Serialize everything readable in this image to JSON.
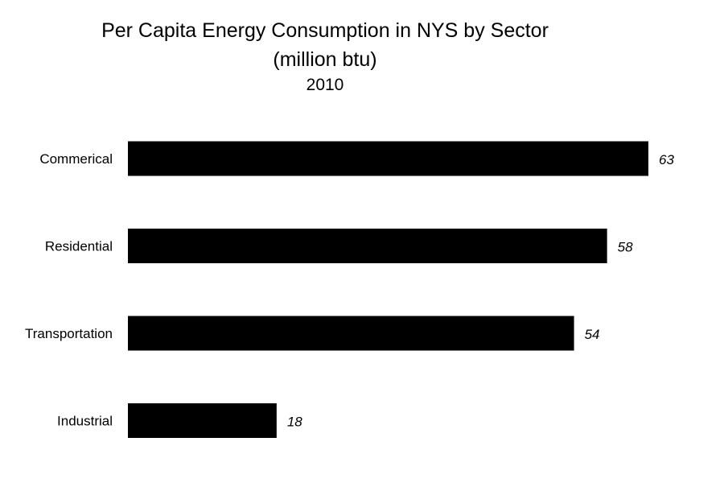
{
  "chart_data": {
    "type": "bar",
    "orientation": "horizontal",
    "title": "Per Capita Energy Consumption in NYS by Sector",
    "subtitle": "(million btu)",
    "year": "2010",
    "categories": [
      "Commerical",
      "Residential",
      "Transportation",
      "Industrial"
    ],
    "values": [
      63,
      58,
      54,
      18
    ],
    "xlabel": "",
    "ylabel": "",
    "xlim": [
      0,
      63
    ],
    "bar_color": "#000000",
    "grid": false,
    "legend": "none",
    "data_labels": true
  }
}
